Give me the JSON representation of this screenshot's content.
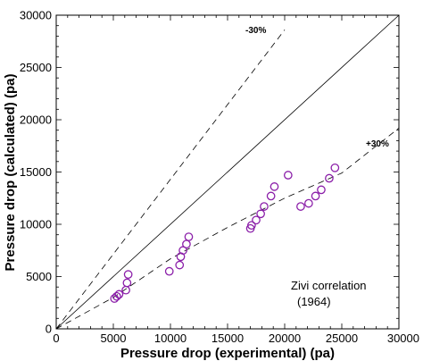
{
  "chart_data": {
    "type": "scatter",
    "xlabel": "Pressure drop (experimental) (pa)",
    "ylabel": "Pressure drop (calculated) (pa)",
    "xlim": [
      0,
      30000
    ],
    "ylim": [
      0,
      30000
    ],
    "xticks": [
      "0",
      "5000",
      "10000",
      "15000",
      "20000",
      "25000",
      "30000"
    ],
    "yticks": [
      "0",
      "5000",
      "10000",
      "15000",
      "20000",
      "25000",
      "30000"
    ],
    "grid": false,
    "colors": {
      "marker": "#8b1fa9",
      "line": "#000000"
    },
    "annotations": {
      "minus30": "-30%",
      "plus30": "+30%",
      "note_line1": "Zivi correlation",
      "note_line2": "(1964)"
    },
    "reference_lines": {
      "equality": {
        "x": [
          0,
          30000
        ],
        "y": [
          0,
          30000
        ]
      },
      "minus30": {
        "x": [
          0,
          20000
        ],
        "y": [
          0,
          28600
        ]
      },
      "plus30": {
        "x": [
          0,
          5000,
          10000,
          15000,
          20000,
          25000,
          30000
        ],
        "y": [
          0,
          3000,
          6700,
          9700,
          12500,
          14900,
          19200
        ]
      }
    },
    "points": [
      {
        "x": 5100,
        "y": 2900
      },
      {
        "x": 5300,
        "y": 3100
      },
      {
        "x": 5500,
        "y": 3300
      },
      {
        "x": 6100,
        "y": 3700
      },
      {
        "x": 6200,
        "y": 4400
      },
      {
        "x": 6300,
        "y": 5200
      },
      {
        "x": 9900,
        "y": 5500
      },
      {
        "x": 10800,
        "y": 6100
      },
      {
        "x": 10900,
        "y": 6900
      },
      {
        "x": 11100,
        "y": 7500
      },
      {
        "x": 11400,
        "y": 8100
      },
      {
        "x": 11600,
        "y": 8800
      },
      {
        "x": 17000,
        "y": 9600
      },
      {
        "x": 17100,
        "y": 9900
      },
      {
        "x": 17500,
        "y": 10400
      },
      {
        "x": 17900,
        "y": 11000
      },
      {
        "x": 18200,
        "y": 11700
      },
      {
        "x": 18800,
        "y": 12700
      },
      {
        "x": 19100,
        "y": 13600
      },
      {
        "x": 20300,
        "y": 14700
      },
      {
        "x": 21400,
        "y": 11700
      },
      {
        "x": 22100,
        "y": 12000
      },
      {
        "x": 22700,
        "y": 12700
      },
      {
        "x": 23200,
        "y": 13300
      },
      {
        "x": 23900,
        "y": 14400
      },
      {
        "x": 24400,
        "y": 15400
      }
    ]
  }
}
